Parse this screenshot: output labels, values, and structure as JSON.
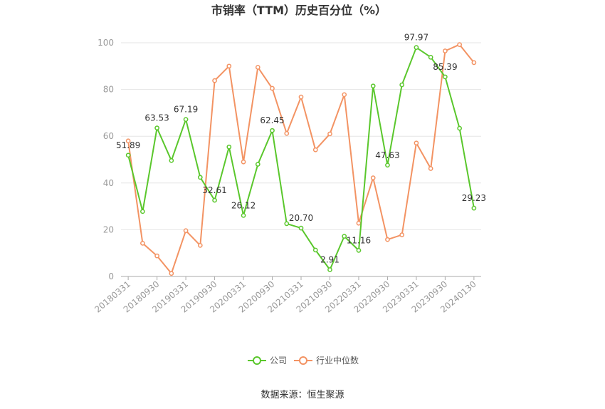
{
  "chart_data": {
    "type": "line",
    "title": "市销率（TTM）历史百分位（%）",
    "xlabel": "",
    "ylabel": "",
    "ylim": [
      0,
      100
    ],
    "yticks": [
      0,
      20,
      40,
      60,
      80,
      100
    ],
    "grid": true,
    "legend": "bottom-center",
    "source": "数据来源：恒生聚源",
    "x": [
      "20180331",
      "20180630",
      "20180930",
      "20181231",
      "20190331",
      "20190630",
      "20190930",
      "20191231",
      "20200331",
      "20200630",
      "20200930",
      "20201231",
      "20210331",
      "20210630",
      "20210930",
      "20211231",
      "20220331",
      "20220630",
      "20220930",
      "20221231",
      "20230331",
      "20230630",
      "20230930",
      "20231231",
      "20240130"
    ],
    "x_tick_labels": [
      "20180331",
      "20180930",
      "20190331",
      "20190930",
      "20200331",
      "20200930",
      "20210331",
      "20210930",
      "20220331",
      "20220930",
      "20230331",
      "20230930",
      "20240130"
    ],
    "series": [
      {
        "name": "公司",
        "color": "#5ac72c",
        "values": [
          51.89,
          27.8,
          63.53,
          49.6,
          67.19,
          42.4,
          32.61,
          55.4,
          26.12,
          48.0,
          62.45,
          22.6,
          20.7,
          11.3,
          2.91,
          17.2,
          11.16,
          81.5,
          47.63,
          82.0,
          97.97,
          93.8,
          85.39,
          63.4,
          29.23
        ],
        "labels": {
          "0": "51.89",
          "2": "63.53",
          "4": "67.19",
          "6": "32.61",
          "8": "26.12",
          "10": "62.45",
          "12": "20.70",
          "14": "2.91",
          "16": "11.16",
          "18": "47.63",
          "20": "97.97",
          "22": "85.39",
          "24": "29.23"
        }
      },
      {
        "name": "行业中位数",
        "color": "#f39363",
        "values": [
          58.0,
          14.2,
          8.8,
          1.3,
          19.6,
          13.3,
          83.8,
          90.0,
          49.0,
          89.5,
          80.5,
          61.2,
          76.8,
          54.2,
          61.0,
          77.8,
          22.8,
          42.2,
          15.8,
          17.8,
          57.1,
          46.2,
          96.5,
          99.2,
          91.5
        ]
      }
    ]
  }
}
